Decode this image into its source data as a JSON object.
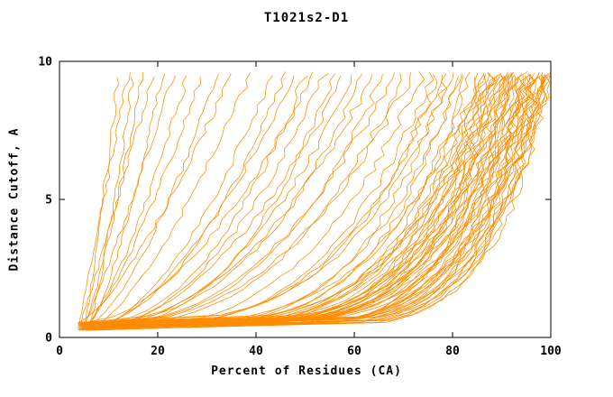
{
  "chart_data": {
    "type": "line",
    "title": "T1021s2-D1",
    "xlabel": "Percent of Residues (CA)",
    "ylabel": "Distance Cutoff, A",
    "xlim": [
      0,
      100
    ],
    "ylim": [
      0,
      10
    ],
    "xticks": [
      0,
      20,
      40,
      60,
      80,
      100
    ],
    "yticks": [
      0,
      5,
      10
    ],
    "grid": false,
    "legend": null,
    "line_color": "#ff8c00",
    "axis_color": "#000000",
    "curve_y_start": 0.25,
    "curve_y_end": 9.55,
    "curve_format": [
      "start_percent_at_cutoff_0",
      "percent_at_cutoff_10",
      "shape_exponent"
    ],
    "curves": [
      [
        5,
        12,
        0.9
      ],
      [
        4,
        14,
        1.0
      ],
      [
        6,
        15,
        0.85
      ],
      [
        5,
        17,
        0.8
      ],
      [
        4,
        19,
        0.95
      ],
      [
        6,
        21,
        0.75
      ],
      [
        5,
        23,
        0.9
      ],
      [
        4,
        26,
        0.7
      ],
      [
        6,
        29,
        0.8
      ],
      [
        5,
        32,
        0.65
      ],
      [
        4,
        35,
        0.75
      ],
      [
        6,
        39,
        0.7
      ],
      [
        5,
        43,
        0.55
      ],
      [
        4,
        46,
        0.5
      ],
      [
        6,
        48,
        0.6
      ],
      [
        5,
        50,
        0.45
      ],
      [
        4,
        52,
        0.55
      ],
      [
        6,
        54,
        0.5
      ],
      [
        5,
        56,
        0.4
      ],
      [
        4,
        58,
        0.5
      ],
      [
        6,
        60,
        0.45
      ],
      [
        5,
        62,
        0.4
      ],
      [
        4,
        64,
        0.45
      ],
      [
        6,
        66,
        0.38
      ],
      [
        5,
        68,
        0.42
      ],
      [
        4,
        70,
        0.36
      ],
      [
        6,
        72,
        0.4
      ],
      [
        5,
        74,
        0.34
      ],
      [
        5,
        76,
        0.3
      ],
      [
        4,
        77,
        0.26
      ],
      [
        6,
        78,
        0.3
      ],
      [
        5,
        79,
        0.24
      ],
      [
        4,
        80,
        0.28
      ],
      [
        6,
        81,
        0.22
      ],
      [
        5,
        82,
        0.26
      ],
      [
        4,
        83,
        0.2
      ],
      [
        6,
        84,
        0.24
      ],
      [
        5,
        85,
        0.2
      ],
      [
        4,
        86,
        0.22
      ],
      [
        6,
        86,
        0.18
      ],
      [
        5,
        87,
        0.22
      ],
      [
        4,
        87,
        0.17
      ],
      [
        6,
        88,
        0.2
      ],
      [
        5,
        88,
        0.16
      ],
      [
        4,
        89,
        0.2
      ],
      [
        6,
        89,
        0.15
      ],
      [
        5,
        90,
        0.19
      ],
      [
        4,
        90,
        0.15
      ],
      [
        6,
        91,
        0.18
      ],
      [
        5,
        91,
        0.14
      ],
      [
        4,
        92,
        0.18
      ],
      [
        6,
        92,
        0.14
      ],
      [
        5,
        93,
        0.17
      ],
      [
        4,
        93,
        0.13
      ],
      [
        6,
        94,
        0.16
      ],
      [
        5,
        94,
        0.13
      ],
      [
        4,
        95,
        0.16
      ],
      [
        6,
        95,
        0.12
      ],
      [
        5,
        96,
        0.15
      ],
      [
        4,
        96,
        0.12
      ],
      [
        6,
        97,
        0.15
      ],
      [
        5,
        97,
        0.12
      ],
      [
        4,
        98,
        0.14
      ],
      [
        6,
        98,
        0.12
      ],
      [
        5,
        99,
        0.14
      ],
      [
        4,
        99,
        0.12
      ],
      [
        6,
        100,
        0.13
      ],
      [
        5,
        100,
        0.12
      ],
      [
        4,
        96,
        0.2
      ],
      [
        6,
        93,
        0.22
      ],
      [
        5,
        97,
        0.18
      ],
      [
        4,
        94,
        0.21
      ],
      [
        6,
        98,
        0.17
      ],
      [
        5,
        95,
        0.19
      ],
      [
        4,
        99,
        0.16
      ],
      [
        6,
        96,
        0.18
      ],
      [
        5,
        92,
        0.2
      ],
      [
        4,
        90,
        0.22
      ],
      [
        6,
        88,
        0.24
      ],
      [
        5,
        86,
        0.26
      ],
      [
        4,
        98,
        0.15
      ],
      [
        6,
        99,
        0.13
      ],
      [
        5,
        100,
        0.14
      ],
      [
        4,
        97,
        0.16
      ],
      [
        6,
        95,
        0.17
      ],
      [
        5,
        93,
        0.19
      ],
      [
        4,
        91,
        0.21
      ],
      [
        6,
        89,
        0.23
      ]
    ]
  }
}
